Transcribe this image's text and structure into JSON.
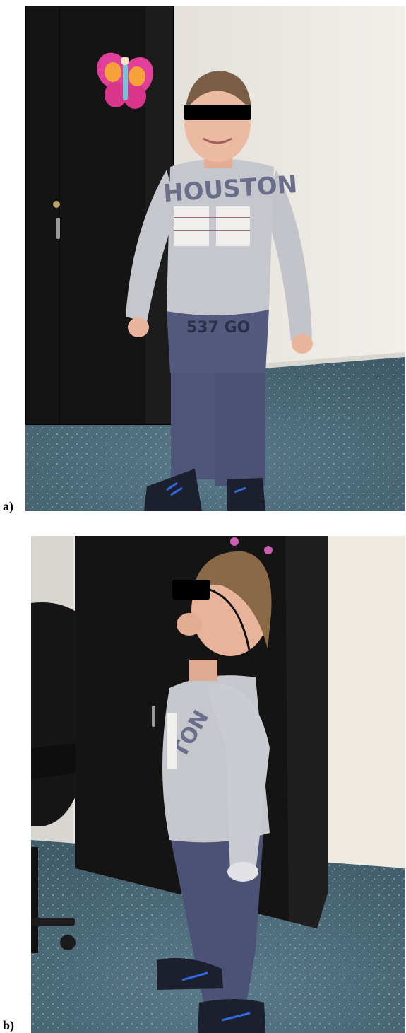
{
  "figure": {
    "panels": [
      {
        "label": "a)",
        "subject": "child standing, front view",
        "shirt_text": "HOUSTON",
        "pants_text": "537 GO"
      },
      {
        "label": "b)",
        "subject": "child standing, side view",
        "shirt_text": "TON"
      }
    ]
  },
  "colors": {
    "wardrobe": "#151515",
    "wall": "#ece8e0",
    "floor": "#4f6c7c",
    "shirt": "#c4c5cb",
    "pants": "#4e5478",
    "skin": "#e8b7a0",
    "hair": "#8a6a46",
    "shoes": "#1d2030",
    "shoe_stripe": "#2f6bdc",
    "censor_bar": "#000000"
  }
}
